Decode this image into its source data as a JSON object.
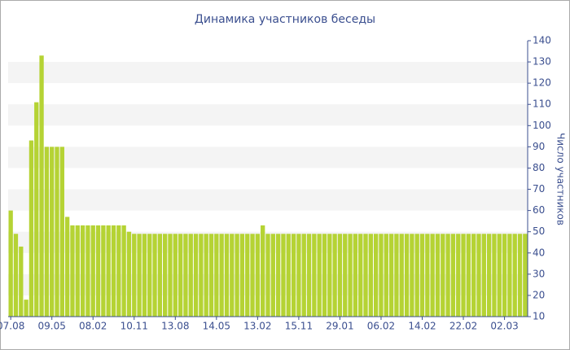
{
  "chart_data": {
    "type": "bar",
    "title": "Динамика участников беседы",
    "y_label": "Число участников",
    "categories": [
      "07.08",
      null,
      null,
      null,
      null,
      null,
      null,
      null,
      "09.05",
      null,
      null,
      null,
      null,
      null,
      null,
      null,
      "08.02",
      null,
      null,
      null,
      null,
      null,
      null,
      null,
      "10.11",
      null,
      null,
      null,
      null,
      null,
      null,
      null,
      "13.08",
      null,
      null,
      null,
      null,
      null,
      null,
      null,
      "14.05",
      null,
      null,
      null,
      null,
      null,
      null,
      null,
      "13.02",
      null,
      null,
      null,
      null,
      null,
      null,
      null,
      "15.11",
      null,
      null,
      null,
      null,
      null,
      null,
      null,
      "29.01",
      null,
      null,
      null,
      null,
      null,
      null,
      null,
      "06.02",
      null,
      null,
      null,
      null,
      null,
      null,
      null,
      "14.02",
      null,
      null,
      null,
      null,
      null,
      null,
      null,
      "22.02",
      null,
      null,
      null,
      null,
      null,
      null,
      null,
      "02.03",
      null,
      null,
      null,
      null
    ],
    "values": [
      60,
      49,
      43,
      18,
      93,
      111,
      133,
      90,
      90,
      90,
      90,
      57,
      53,
      53,
      53,
      53,
      53,
      53,
      53,
      53,
      53,
      53,
      53,
      50,
      49,
      49,
      49,
      49,
      49,
      49,
      49,
      49,
      49,
      49,
      49,
      49,
      49,
      49,
      49,
      49,
      49,
      49,
      49,
      49,
      49,
      49,
      49,
      49,
      49,
      53,
      49,
      49,
      49,
      49,
      49,
      49,
      49,
      49,
      49,
      49,
      49,
      49,
      49,
      49,
      49,
      49,
      49,
      49,
      49,
      49,
      49,
      49,
      49,
      49,
      49,
      49,
      49,
      49,
      49,
      49,
      49,
      49,
      49,
      49,
      49,
      49,
      49,
      49,
      49,
      49,
      49,
      49,
      49,
      49,
      49,
      49,
      49,
      49,
      49,
      49,
      49
    ],
    "color": "#b5d334",
    "ylim": [
      10,
      140
    ],
    "yticks": [
      10,
      20,
      30,
      40,
      50,
      60,
      70,
      80,
      90,
      100,
      110,
      120,
      130,
      140
    ],
    "grid_bands": true,
    "y_axis_side": "right"
  }
}
